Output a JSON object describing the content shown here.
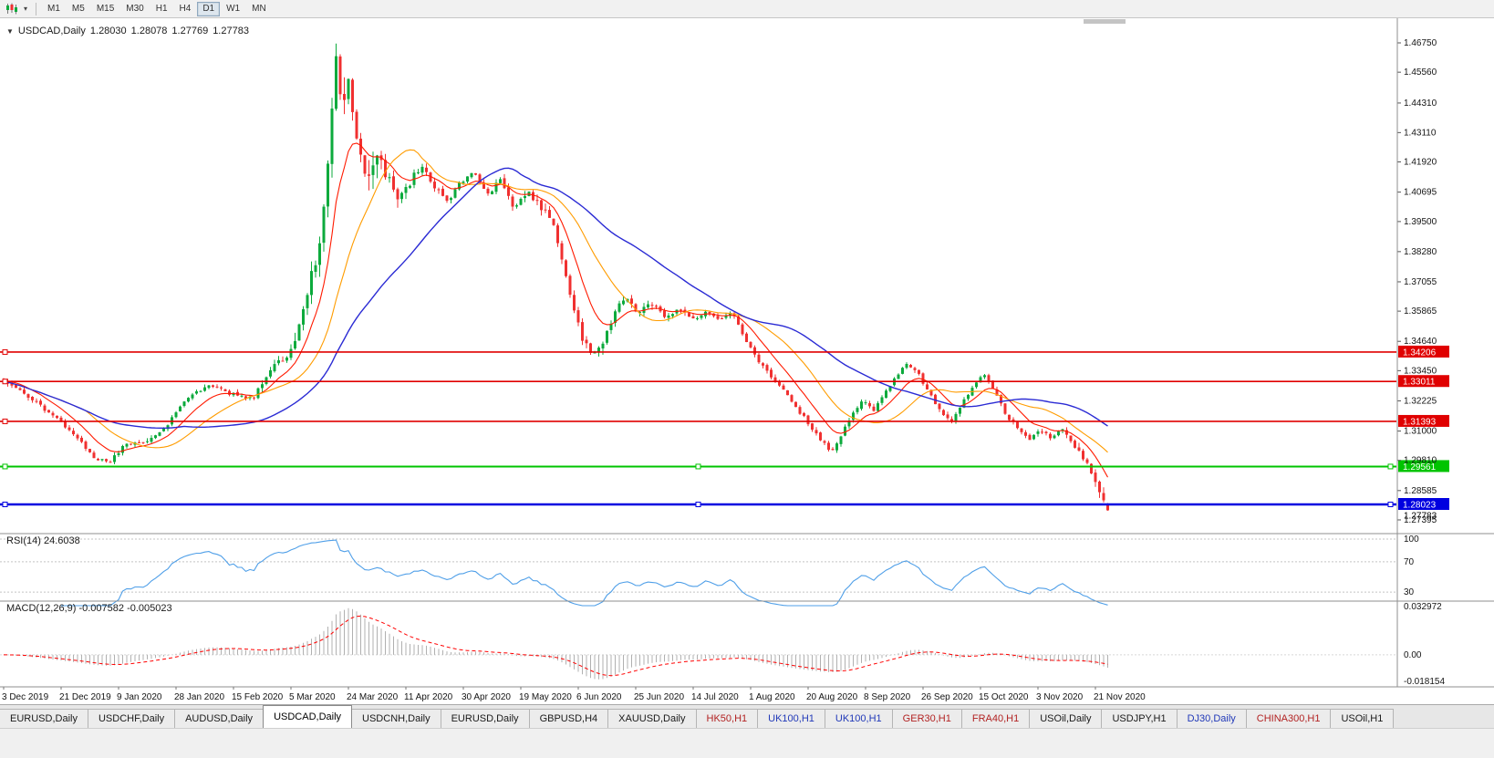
{
  "toolbar": {
    "timeframes": [
      {
        "label": "M1",
        "active": false
      },
      {
        "label": "M5",
        "active": false
      },
      {
        "label": "M15",
        "active": false
      },
      {
        "label": "M30",
        "active": false
      },
      {
        "label": "H1",
        "active": false
      },
      {
        "label": "H4",
        "active": false
      },
      {
        "label": "D1",
        "active": true
      },
      {
        "label": "W1",
        "active": false
      },
      {
        "label": "MN",
        "active": false
      }
    ]
  },
  "chart": {
    "title": {
      "symbol": "USDCAD,Daily",
      "open": "1.28030",
      "high": "1.28078",
      "low": "1.27769",
      "close": "1.27783"
    }
  },
  "panels": {
    "rsi": {
      "label": "RSI(14) 24.6038"
    },
    "macd": {
      "label": "MACD(12,26,9) -0.007582 -0.005023"
    }
  },
  "chart_data": {
    "type": "candlestick",
    "symbol": "USDCAD",
    "timeframe": "Daily",
    "bars": 270,
    "visible_price_range": [
      1.2684,
      1.4775
    ],
    "last_bar_ohlc": {
      "open": 1.2803,
      "high": 1.28078,
      "low": 1.27769,
      "close": 1.27783
    },
    "forced_peak": {
      "t": 0.301,
      "high": 1.4672
    },
    "price_axis_ticks": [
      "1.46750",
      "1.45560",
      "1.44310",
      "1.43110",
      "1.41920",
      "1.40695",
      "1.39500",
      "1.38280",
      "1.37055",
      "1.35865",
      "1.34640",
      "1.33450",
      "1.32225",
      "1.31000",
      "1.29810",
      "1.28585",
      "1.27395"
    ],
    "current_price": "1.27783",
    "time_labels": [
      "3 Dec 2019",
      "21 Dec 2019",
      "9 Jan 2020",
      "28 Jan 2020",
      "15 Feb 2020",
      "5 Mar 2020",
      "24 Mar 2020",
      "11 Apr 2020",
      "30 Apr 2020",
      "19 May 2020",
      "6 Jun 2020",
      "25 Jun 2020",
      "14 Jul 2020",
      "1 Aug 2020",
      "20 Aug 2020",
      "8 Sep 2020",
      "26 Sep 2020",
      "15 Oct 2020",
      "3 Nov 2020",
      "21 Nov 2020"
    ],
    "x_label_every_bars": 14,
    "price_path": [
      [
        0.0,
        1.3305
      ],
      [
        0.02,
        1.3248
      ],
      [
        0.045,
        1.316
      ],
      [
        0.065,
        1.3085
      ],
      [
        0.08,
        1.3
      ],
      [
        0.095,
        1.2968
      ],
      [
        0.11,
        1.3048
      ],
      [
        0.13,
        1.3058
      ],
      [
        0.15,
        1.3135
      ],
      [
        0.165,
        1.3228
      ],
      [
        0.185,
        1.3288
      ],
      [
        0.205,
        1.3252
      ],
      [
        0.225,
        1.3232
      ],
      [
        0.245,
        1.3375
      ],
      [
        0.262,
        1.342
      ],
      [
        0.275,
        1.364
      ],
      [
        0.287,
        1.39
      ],
      [
        0.296,
        1.433
      ],
      [
        0.301,
        1.46
      ],
      [
        0.306,
        1.439
      ],
      [
        0.312,
        1.453
      ],
      [
        0.32,
        1.428
      ],
      [
        0.328,
        1.409
      ],
      [
        0.337,
        1.423
      ],
      [
        0.347,
        1.413
      ],
      [
        0.357,
        1.403
      ],
      [
        0.368,
        1.411
      ],
      [
        0.378,
        1.418
      ],
      [
        0.39,
        1.409
      ],
      [
        0.402,
        1.403
      ],
      [
        0.414,
        1.411
      ],
      [
        0.426,
        1.415
      ],
      [
        0.438,
        1.406
      ],
      [
        0.45,
        1.412
      ],
      [
        0.462,
        1.401
      ],
      [
        0.475,
        1.407
      ],
      [
        0.487,
        1.401
      ],
      [
        0.497,
        1.396
      ],
      [
        0.51,
        1.372
      ],
      [
        0.522,
        1.35
      ],
      [
        0.532,
        1.34
      ],
      [
        0.54,
        1.344
      ],
      [
        0.552,
        1.356
      ],
      [
        0.563,
        1.365
      ],
      [
        0.575,
        1.3575
      ],
      [
        0.587,
        1.362
      ],
      [
        0.6,
        1.3565
      ],
      [
        0.612,
        1.3595
      ],
      [
        0.625,
        1.355
      ],
      [
        0.637,
        1.3585
      ],
      [
        0.65,
        1.355
      ],
      [
        0.66,
        1.358
      ],
      [
        0.67,
        1.348
      ],
      [
        0.682,
        1.3395
      ],
      [
        0.694,
        1.3325
      ],
      [
        0.706,
        1.3265
      ],
      [
        0.718,
        1.3195
      ],
      [
        0.73,
        1.3125
      ],
      [
        0.74,
        1.3065
      ],
      [
        0.75,
        1.3015
      ],
      [
        0.758,
        1.308
      ],
      [
        0.768,
        1.316
      ],
      [
        0.778,
        1.323
      ],
      [
        0.788,
        1.3185
      ],
      [
        0.798,
        1.325
      ],
      [
        0.808,
        1.332
      ],
      [
        0.818,
        1.338
      ],
      [
        0.828,
        1.3335
      ],
      [
        0.838,
        1.3255
      ],
      [
        0.848,
        1.3185
      ],
      [
        0.858,
        1.3135
      ],
      [
        0.868,
        1.321
      ],
      [
        0.878,
        1.328
      ],
      [
        0.888,
        1.333
      ],
      [
        0.898,
        1.3255
      ],
      [
        0.908,
        1.3165
      ],
      [
        0.918,
        1.3115
      ],
      [
        0.928,
        1.3065
      ],
      [
        0.938,
        1.3105
      ],
      [
        0.948,
        1.3075
      ],
      [
        0.958,
        1.311
      ],
      [
        0.964,
        1.307
      ],
      [
        0.97,
        1.304
      ],
      [
        0.978,
        1.2995
      ],
      [
        0.985,
        1.293
      ],
      [
        0.992,
        1.286
      ],
      [
        1.0,
        1.2778
      ]
    ],
    "candle_up_color": "#0caa3c",
    "candle_down_color": "#f03030",
    "moving_averages": [
      {
        "name": "fast",
        "type": "ema",
        "period": 10,
        "color": "#ff1a00",
        "width": 1.1
      },
      {
        "name": "medium",
        "type": "sma",
        "period": 21,
        "color": "#ff9c00",
        "width": 1.1
      },
      {
        "name": "slow",
        "type": "sma",
        "period": 45,
        "color": "#2b2bd4",
        "width": 1.4
      }
    ],
    "horizontal_lines": [
      {
        "price": 1.34206,
        "label": "1.34206",
        "color": "#e00000",
        "width": 1.6,
        "handles": false
      },
      {
        "price": 1.33011,
        "label": "1.33011",
        "color": "#e00000",
        "width": 1.6,
        "handles": false
      },
      {
        "price": 1.31393,
        "label": "1.31393",
        "color": "#e00000",
        "width": 1.6,
        "handles": false
      },
      {
        "price": 1.29561,
        "label": "1.29561",
        "color": "#00c400",
        "width": 2.0,
        "handles": true
      },
      {
        "price": 1.28023,
        "label": "1.28023",
        "color": "#0000e0",
        "width": 2.4,
        "handles": true
      }
    ],
    "rsi": {
      "period": 14,
      "last_value": 24.6038,
      "color": "#4f9fe8",
      "levels": [
        100,
        70,
        30
      ],
      "axis_labels": [
        "100",
        "70",
        "30"
      ]
    },
    "macd": {
      "fast": 12,
      "slow": 26,
      "signal": 9,
      "last_macd": -0.007582,
      "last_signal": -0.005023,
      "axis_max": 0.032972,
      "axis_min": -0.018154,
      "axis_labels": [
        "0.032972",
        "0.00",
        "-0.018154"
      ],
      "hist_color": "#b0b0b0",
      "signal_color": "#ff0000"
    },
    "render_seed": 987654321
  },
  "tabs": [
    {
      "label": "EURUSD,Daily",
      "color": "#1a1a1a",
      "active": false
    },
    {
      "label": "USDCHF,Daily",
      "color": "#1a1a1a",
      "active": false
    },
    {
      "label": "AUDUSD,Daily",
      "color": "#1a1a1a",
      "active": false
    },
    {
      "label": "USDCAD,Daily",
      "color": "#000000",
      "active": true
    },
    {
      "label": "USDCNH,Daily",
      "color": "#1a1a1a",
      "active": false
    },
    {
      "label": "EURUSD,Daily",
      "color": "#1a1a1a",
      "active": false
    },
    {
      "label": "GBPUSD,H4",
      "color": "#1a1a1a",
      "active": false
    },
    {
      "label": "XAUUSD,Daily",
      "color": "#1a1a1a",
      "active": false
    },
    {
      "label": "HK50,H1",
      "color": "#b22222",
      "active": false
    },
    {
      "label": "UK100,H1",
      "color": "#2038b8",
      "active": false
    },
    {
      "label": "UK100,H1",
      "color": "#2038b8",
      "active": false
    },
    {
      "label": "GER30,H1",
      "color": "#b22222",
      "active": false
    },
    {
      "label": "FRA40,H1",
      "color": "#b22222",
      "active": false
    },
    {
      "label": "USOil,Daily",
      "color": "#1a1a1a",
      "active": false
    },
    {
      "label": "USDJPY,H1",
      "color": "#1a1a1a",
      "active": false
    },
    {
      "label": "DJ30,Daily",
      "color": "#2038b8",
      "active": false
    },
    {
      "label": "CHINA300,H1",
      "color": "#b22222",
      "active": false
    },
    {
      "label": "USOil,H1",
      "color": "#1a1a1a",
      "active": false
    }
  ]
}
